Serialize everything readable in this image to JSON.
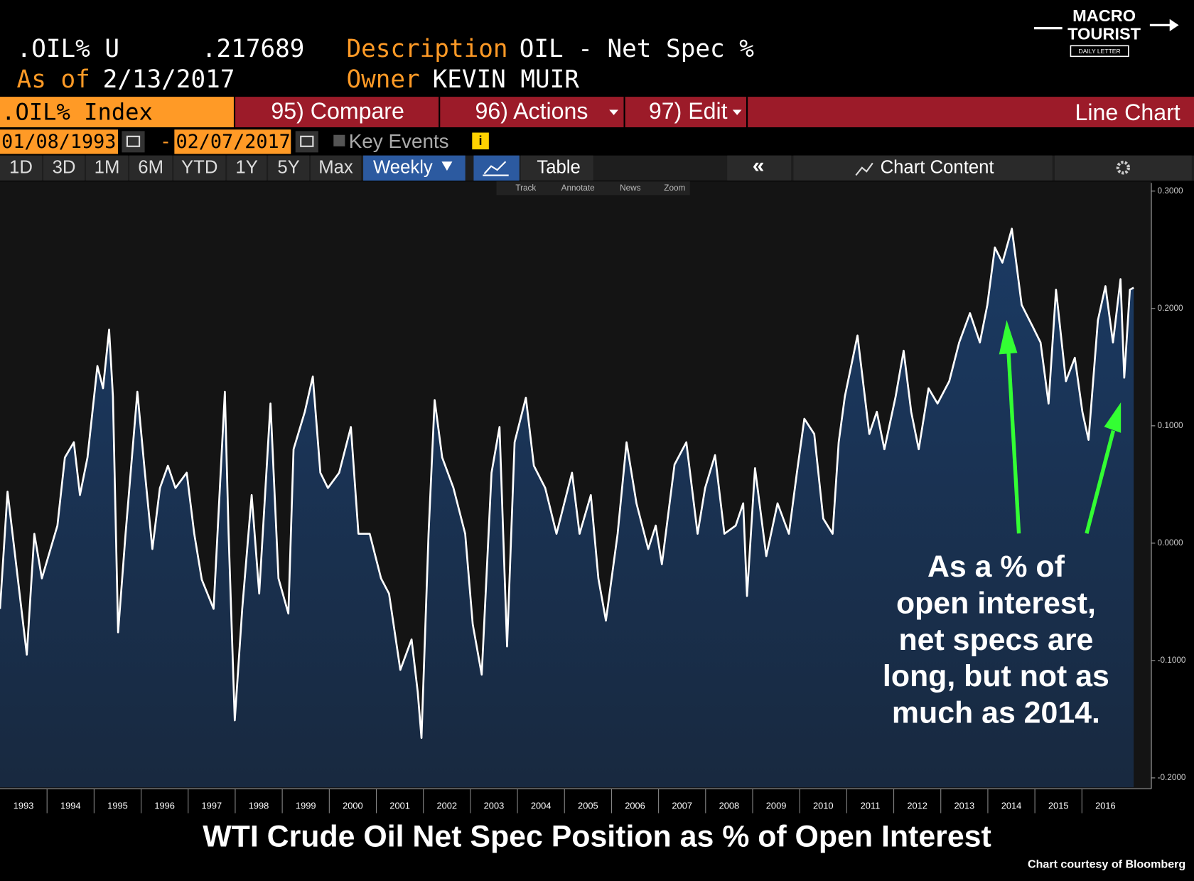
{
  "header": {
    "ticker": ".OIL% U",
    "last_value": ".217689",
    "description_label": "Description",
    "description": "OIL - Net Spec %",
    "as_of_label": "As of",
    "as_of": "2/13/2017",
    "owner_label": "Owner",
    "owner": "KEVIN MUIR"
  },
  "logo": {
    "line1": "MACRO",
    "line2": "TOURIST",
    "tagline": "DAILY LETTER"
  },
  "toolbar": {
    "security": ".OIL% Index",
    "menu": [
      "95) Compare",
      "96) Actions",
      "97) Edit"
    ],
    "chart_type": "Line Chart"
  },
  "date_range": {
    "start": "01/08/1993",
    "separator": "-",
    "end": "02/07/2017",
    "key_events": "Key Events"
  },
  "periods": [
    "1D",
    "3D",
    "1M",
    "6M",
    "YTD",
    "1Y",
    "5Y",
    "Max"
  ],
  "frequency": "Weekly",
  "table": "Table",
  "chart_content": "Chart Content",
  "tools": [
    "Track",
    "Annotate",
    "News",
    "Zoom"
  ],
  "chart_data": {
    "type": "area",
    "title": "WTI Crude Oil Net Spec Position as % of Open Interest",
    "source": "Chart courtesy of Bloomberg",
    "annotation": [
      "As a % of",
      "open interest,",
      "net specs are",
      "long, but not as",
      "much as 2014."
    ],
    "color": "#ffffff",
    "fill": "#1b3a63",
    "x": [
      1993.0,
      1993.16,
      1993.57,
      1993.73,
      1993.89,
      1994.22,
      1994.38,
      1994.57,
      1994.7,
      1994.86,
      1995.07,
      1995.19,
      1995.32,
      1995.4,
      1995.51,
      1995.67,
      1995.92,
      1996.08,
      1996.24,
      1996.4,
      1996.57,
      1996.73,
      1996.97,
      1997.13,
      1997.29,
      1997.54,
      1997.78,
      1997.86,
      1997.99,
      1998.15,
      1998.35,
      1998.51,
      1998.75,
      1998.92,
      1999.13,
      1999.24,
      1999.48,
      1999.65,
      1999.81,
      1999.97,
      2000.21,
      2000.46,
      2000.62,
      2000.86,
      2001.1,
      2001.27,
      2001.51,
      2001.75,
      2001.88,
      2001.96,
      2002.11,
      2002.24,
      2002.4,
      2002.64,
      2002.89,
      2003.05,
      2003.24,
      2003.45,
      2003.62,
      2003.78,
      2003.94,
      2004.18,
      2004.35,
      2004.59,
      2004.83,
      2005.16,
      2005.32,
      2005.56,
      2005.72,
      2005.88,
      2006.13,
      2006.32,
      2006.53,
      2006.78,
      2006.94,
      2007.07,
      2007.34,
      2007.59,
      2007.83,
      2007.99,
      2008.2,
      2008.4,
      2008.64,
      2008.8,
      2008.88,
      2009.05,
      2009.29,
      2009.53,
      2009.77,
      2009.94,
      2010.1,
      2010.31,
      2010.5,
      2010.7,
      2010.83,
      2010.96,
      2011.23,
      2011.48,
      2011.64,
      2011.8,
      2012.04,
      2012.21,
      2012.37,
      2012.53,
      2012.74,
      2012.93,
      2013.18,
      2013.39,
      2013.62,
      2013.83,
      2013.99,
      2014.15,
      2014.31,
      2014.51,
      2014.72,
      2014.96,
      2015.12,
      2015.29,
      2015.45,
      2015.66,
      2015.85,
      2016.01,
      2016.14,
      2016.34,
      2016.5,
      2016.66,
      2016.82,
      2016.9,
      2017.02,
      2017.1
    ],
    "values": [
      -0.056,
      0.044,
      -0.095,
      0.008,
      -0.03,
      0.015,
      0.073,
      0.086,
      0.041,
      0.073,
      0.151,
      0.132,
      0.182,
      0.125,
      -0.076,
      0.008,
      0.129,
      0.06,
      -0.005,
      0.047,
      0.066,
      0.047,
      0.06,
      0.008,
      -0.031,
      -0.056,
      0.129,
      0.008,
      -0.151,
      -0.056,
      0.041,
      -0.043,
      0.119,
      -0.03,
      -0.06,
      0.08,
      0.112,
      0.142,
      0.06,
      0.047,
      0.06,
      0.099,
      0.008,
      0.008,
      -0.03,
      -0.043,
      -0.108,
      -0.082,
      -0.127,
      -0.166,
      0.008,
      0.122,
      0.073,
      0.047,
      0.008,
      -0.069,
      -0.112,
      0.06,
      0.099,
      -0.088,
      0.086,
      0.124,
      0.066,
      0.047,
      0.008,
      0.06,
      0.008,
      0.041,
      -0.03,
      -0.066,
      0.008,
      0.086,
      0.034,
      -0.005,
      0.015,
      -0.018,
      0.067,
      0.086,
      0.008,
      0.047,
      0.075,
      0.008,
      0.015,
      0.034,
      -0.045,
      0.064,
      -0.011,
      0.034,
      0.008,
      0.06,
      0.106,
      0.093,
      0.021,
      0.008,
      0.086,
      0.125,
      0.177,
      0.093,
      0.112,
      0.08,
      0.125,
      0.164,
      0.112,
      0.08,
      0.132,
      0.119,
      0.138,
      0.171,
      0.196,
      0.171,
      0.203,
      0.252,
      0.239,
      0.268,
      0.203,
      0.184,
      0.171,
      0.119,
      0.216,
      0.138,
      0.158,
      0.112,
      0.088,
      0.19,
      0.219,
      0.171,
      0.225,
      0.141,
      0.216,
      0.2177
    ],
    "xlim": [
      1993.0,
      2017.12
    ],
    "ylim": [
      -0.208,
      0.307
    ],
    "xticks": [
      1993,
      1994,
      1995,
      1996,
      1997,
      1998,
      1999,
      2000,
      2001,
      2002,
      2003,
      2004,
      2005,
      2006,
      2007,
      2008,
      2009,
      2010,
      2011,
      2012,
      2013,
      2014,
      2015,
      2016
    ],
    "yticks": [
      {
        "value": 0.3,
        "label": "0.3000"
      },
      {
        "value": 0.2,
        "label": "0.2000"
      },
      {
        "value": 0.1,
        "label": "0.1000"
      },
      {
        "value": 0,
        "label": "0.0000"
      },
      {
        "value": -0.1,
        "label": "-0.1000"
      },
      {
        "value": -0.2,
        "label": "-0.2000"
      }
    ]
  }
}
